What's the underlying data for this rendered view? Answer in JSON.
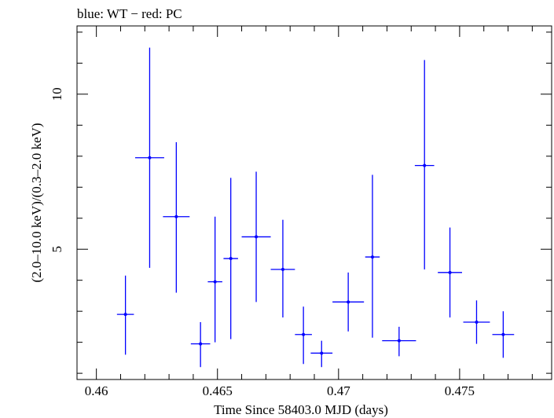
{
  "chart_data": {
    "type": "scatter",
    "title": "blue: WT − red: PC",
    "xlabel": "Time Since 58403.0 MJD (days)",
    "ylabel": "(2.0–10.0 keV)/(0.3–2.0 keV)",
    "xlim": [
      0.4592,
      0.4788
    ],
    "ylim": [
      0.8,
      12.2
    ],
    "x_ticks": [
      0.46,
      0.465,
      0.47,
      0.475
    ],
    "x_tick_labels": [
      "0.46",
      "0.465",
      "0.47",
      "0.475"
    ],
    "y_ticks": [
      5,
      10
    ],
    "y_tick_labels": [
      "5",
      "10"
    ],
    "grid": false,
    "legend": "none",
    "series": [
      {
        "color": "#0000ff",
        "x": [
          0.4612,
          0.4622,
          0.4633,
          0.4643,
          0.4649,
          0.46555,
          0.4666,
          0.4677,
          0.46855,
          0.4693,
          0.4704,
          0.4714,
          0.4725,
          0.47355,
          0.4746,
          0.4757,
          0.4768
        ],
        "xerr": [
          0.00035,
          0.0006,
          0.00055,
          0.0004,
          0.0003,
          0.0003,
          0.0006,
          0.0005,
          0.00035,
          0.00045,
          0.00065,
          0.0003,
          0.0007,
          0.0004,
          0.0005,
          0.00055,
          0.00045
        ],
        "y": [
          2.9,
          7.95,
          6.05,
          1.95,
          3.95,
          4.7,
          5.4,
          4.35,
          2.25,
          1.65,
          3.3,
          4.75,
          2.05,
          7.7,
          4.25,
          2.65,
          2.25
        ],
        "ylo": [
          1.6,
          4.4,
          3.6,
          1.2,
          2.0,
          2.1,
          3.3,
          2.8,
          1.3,
          1.2,
          2.35,
          2.15,
          1.55,
          4.35,
          2.8,
          1.95,
          1.5
        ],
        "yhi": [
          4.15,
          11.5,
          8.45,
          2.65,
          6.05,
          7.3,
          7.5,
          5.95,
          3.15,
          2.05,
          4.25,
          7.4,
          2.5,
          11.1,
          5.7,
          3.35,
          3.0
        ]
      }
    ]
  }
}
